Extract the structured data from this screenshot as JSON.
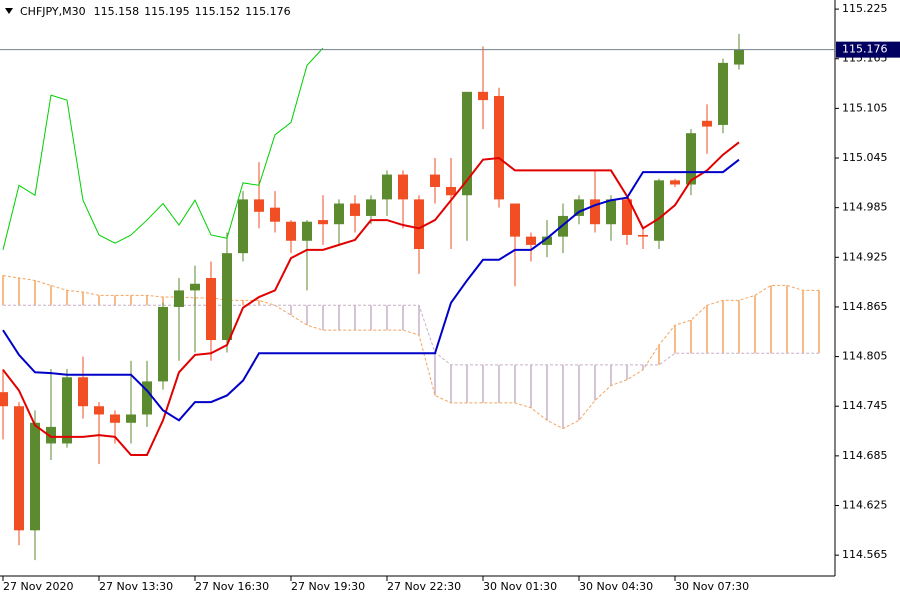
{
  "header": {
    "symbol": "CHFJPY,M30",
    "values": [
      115.158,
      115.195,
      115.152,
      115.176
    ]
  },
  "chart_data": {
    "type": "candlestick",
    "categories": [
      "27 Nov 2020",
      null,
      null,
      null,
      null,
      null,
      "27 Nov 13:30",
      null,
      null,
      null,
      null,
      null,
      "27 Nov 16:30",
      null,
      null,
      null,
      null,
      null,
      "27 Nov 19:30",
      null,
      null,
      null,
      null,
      null,
      "27 Nov 22:30",
      null,
      null,
      null,
      null,
      null,
      "30 Nov 01:30",
      null,
      null,
      null,
      null,
      null,
      "30 Nov 04:30",
      null,
      null,
      null,
      null,
      null,
      "30 Nov 07:30",
      null,
      null,
      null,
      null,
      null,
      null,
      null,
      null,
      null
    ],
    "open": [
      114.762,
      114.745,
      114.595,
      114.7,
      114.7,
      114.78,
      114.745,
      114.735,
      114.725,
      114.735,
      114.775,
      114.865,
      114.885,
      114.9,
      114.825,
      114.93,
      114.995,
      114.985,
      114.968,
      114.945,
      114.97,
      114.965,
      114.99,
      114.975,
      114.995,
      115.025,
      114.995,
      115.025,
      115.01,
      115.0,
      115.125,
      115.12,
      114.99,
      114.95,
      114.94,
      114.95,
      114.975,
      114.995,
      114.965,
      114.995,
      114.952,
      114.945,
      115.018,
      115.013,
      115.09,
      115.085,
      115.158,
      null,
      null,
      null,
      null,
      null
    ],
    "high": [
      114.79,
      114.75,
      114.74,
      114.79,
      114.79,
      114.805,
      114.75,
      114.74,
      114.8,
      114.8,
      114.87,
      114.9,
      114.915,
      114.92,
      114.955,
      115.005,
      115.04,
      115.005,
      114.97,
      114.97,
      115.0,
      114.995,
      115.0,
      115.0,
      115.03,
      115.03,
      115.0,
      115.045,
      115.045,
      115.125,
      115.18,
      115.13,
      114.99,
      114.955,
      114.97,
      114.99,
      115.0,
      115.03,
      115.0,
      115.0,
      114.96,
      115.02,
      115.02,
      115.08,
      115.11,
      115.165,
      115.195,
      null,
      null,
      null,
      null,
      null
    ],
    "low": [
      114.705,
      114.577,
      114.559,
      114.68,
      114.695,
      114.73,
      114.675,
      114.7,
      114.7,
      114.72,
      114.765,
      114.8,
      114.81,
      114.8,
      114.81,
      114.92,
      114.96,
      114.955,
      114.93,
      114.885,
      114.94,
      114.94,
      114.955,
      114.965,
      114.975,
      114.96,
      114.905,
      114.99,
      114.935,
      114.945,
      115.08,
      114.985,
      114.89,
      114.92,
      114.925,
      114.93,
      114.965,
      114.955,
      114.945,
      114.94,
      114.935,
      114.935,
      115.01,
      115.0,
      115.05,
      115.075,
      115.152,
      null,
      null,
      null,
      null,
      null
    ],
    "close": [
      114.745,
      114.595,
      114.725,
      114.72,
      114.78,
      114.745,
      114.735,
      114.725,
      114.735,
      114.775,
      114.865,
      114.885,
      114.893,
      114.825,
      114.93,
      114.995,
      114.98,
      114.968,
      114.945,
      114.968,
      114.965,
      114.99,
      114.975,
      114.995,
      115.025,
      114.995,
      114.935,
      115.01,
      115.0,
      115.125,
      115.115,
      114.995,
      114.95,
      114.94,
      114.95,
      114.975,
      114.995,
      114.965,
      114.995,
      114.952,
      114.95,
      115.018,
      115.013,
      115.075,
      115.083,
      115.16,
      115.176,
      null,
      null,
      null,
      null,
      null
    ],
    "up_color": "#5b8a2f",
    "down_color": "#f24e24",
    "lines": [
      {
        "color": "#e00000",
        "values": [
          114.789,
          114.764,
          114.722,
          114.708,
          114.708,
          114.708,
          114.71,
          114.708,
          114.686,
          114.686,
          114.728,
          114.786,
          114.807,
          114.809,
          114.819,
          114.864,
          114.877,
          114.885,
          114.924,
          114.934,
          114.934,
          114.94,
          114.946,
          114.97,
          114.97,
          114.964,
          114.96,
          114.97,
          114.994,
          115.018,
          115.043,
          115.045,
          115.03,
          115.03,
          115.03,
          115.03,
          115.03,
          115.03,
          115.03,
          114.999,
          114.96,
          114.972,
          114.988,
          115.018,
          115.03,
          115.049,
          115.064,
          null,
          null,
          null,
          null,
          null
        ]
      },
      {
        "color": "#0000c8",
        "values": [
          114.837,
          114.807,
          114.786,
          114.785,
          114.783,
          114.783,
          114.783,
          114.783,
          114.783,
          114.764,
          114.74,
          114.728,
          114.75,
          114.75,
          114.758,
          114.776,
          114.809,
          114.809,
          114.809,
          114.809,
          114.809,
          114.809,
          114.809,
          114.809,
          114.809,
          114.809,
          114.809,
          114.809,
          114.87,
          114.897,
          114.922,
          114.922,
          114.934,
          114.934,
          114.948,
          114.964,
          114.98,
          114.988,
          114.994,
          114.997,
          115.028,
          115.028,
          115.028,
          115.028,
          115.028,
          115.028,
          115.043,
          null,
          null,
          null,
          null,
          null
        ]
      },
      {
        "color": "#00d000",
        "values": [
          114.934,
          115.012,
          115.0,
          115.121,
          115.115,
          114.994,
          114.952,
          114.942,
          114.952,
          114.97,
          114.99,
          114.964,
          114.994,
          114.952,
          114.948,
          115.015,
          115.012,
          115.073,
          115.088,
          115.157,
          115.178,
          null,
          null,
          null,
          null,
          null,
          null,
          null,
          null,
          null,
          null,
          null,
          null,
          null,
          null,
          null,
          null,
          null,
          null,
          null,
          null,
          null,
          null,
          null,
          null,
          null,
          null,
          null,
          null,
          null,
          null,
          null
        ]
      }
    ],
    "cloud": {
      "up_color": "#f4a460",
      "down_color": "#c8b0c8",
      "span_a": [
        114.903,
        114.9,
        114.897,
        114.891,
        114.885,
        114.883,
        114.879,
        114.879,
        114.879,
        114.879,
        114.877,
        114.877,
        114.876,
        114.876,
        114.873,
        114.873,
        114.873,
        114.867,
        114.855,
        114.843,
        114.837,
        114.837,
        114.837,
        114.837,
        114.837,
        114.837,
        114.831,
        114.758,
        114.749,
        114.749,
        114.749,
        114.749,
        114.749,
        114.743,
        114.728,
        114.718,
        114.728,
        114.752,
        114.77,
        114.777,
        114.789,
        114.819,
        114.843,
        114.849,
        114.867,
        114.873,
        114.873,
        114.879,
        114.891,
        114.891,
        114.885,
        114.885
      ],
      "span_b": [
        114.867,
        114.867,
        114.867,
        114.867,
        114.867,
        114.867,
        114.867,
        114.867,
        114.867,
        114.867,
        114.867,
        114.867,
        114.867,
        114.867,
        114.867,
        114.867,
        114.867,
        114.867,
        114.867,
        114.867,
        114.867,
        114.867,
        114.867,
        114.867,
        114.867,
        114.867,
        114.867,
        114.81,
        114.795,
        114.795,
        114.795,
        114.795,
        114.795,
        114.795,
        114.795,
        114.795,
        114.795,
        114.795,
        114.795,
        114.795,
        114.795,
        114.795,
        114.809,
        114.809,
        114.809,
        114.809,
        114.809,
        114.809,
        114.809,
        114.809,
        114.809,
        114.809
      ]
    },
    "last_price": 115.176,
    "ylim": [
      114.541,
      115.236
    ],
    "yticks": [
      115.225,
      115.165,
      115.105,
      115.045,
      114.985,
      114.925,
      114.865,
      114.805,
      114.745,
      114.685,
      114.625,
      114.565
    ]
  }
}
